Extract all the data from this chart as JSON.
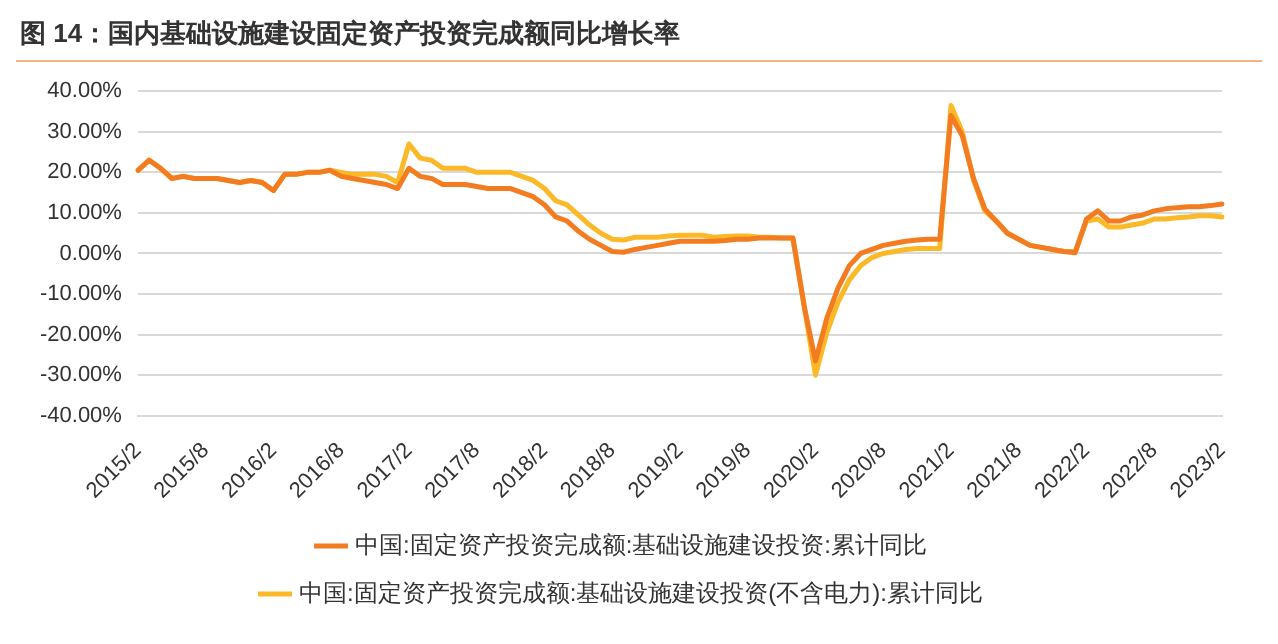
{
  "chart_data": {
    "type": "line",
    "title": "图 14：国内基础设施建设固定资产投资完成额同比增长率",
    "categories": [
      "2015/2",
      null,
      null,
      null,
      null,
      null,
      "2015/8",
      null,
      null,
      null,
      null,
      null,
      "2016/2",
      null,
      null,
      null,
      null,
      null,
      "2016/8",
      null,
      null,
      null,
      null,
      null,
      "2017/2",
      null,
      null,
      null,
      null,
      null,
      "2017/8",
      null,
      null,
      null,
      null,
      null,
      "2018/2",
      null,
      null,
      null,
      null,
      null,
      "2018/8",
      null,
      null,
      null,
      null,
      null,
      "2019/2",
      null,
      null,
      null,
      null,
      null,
      "2019/8",
      null,
      null,
      null,
      null,
      null,
      "2020/2",
      null,
      null,
      null,
      null,
      null,
      "2020/8",
      null,
      null,
      null,
      null,
      null,
      "2021/2",
      null,
      null,
      null,
      null,
      null,
      "2021/8",
      null,
      null,
      null,
      null,
      null,
      "2022/2",
      null,
      null,
      null,
      null,
      null,
      "2022/8",
      null,
      null,
      null,
      null,
      null,
      "2023/2"
    ],
    "series": [
      {
        "name": "中国:固定资产投资完成额:基础设施建设投资:累计同比",
        "color": "#f47c20",
        "values": [
          20.5,
          23,
          21,
          18.5,
          19,
          18.5,
          18.5,
          18.5,
          18,
          17.5,
          18,
          17.5,
          15.5,
          19.5,
          19.5,
          20,
          20,
          20.5,
          19,
          18.5,
          18,
          17.5,
          17,
          16,
          21,
          19,
          18.5,
          17,
          17,
          17,
          16.5,
          16,
          16,
          16,
          15,
          14,
          12,
          9,
          8,
          5.5,
          3.5,
          2,
          0.5,
          0.3,
          1,
          1.5,
          2,
          2.5,
          3,
          3,
          3,
          3,
          3.2,
          3.5,
          3.5,
          3.8,
          3.8,
          3.8,
          3.8,
          -13,
          -26.5,
          -16,
          -8.5,
          -3,
          0,
          1,
          2,
          2.5,
          3,
          3.3,
          3.5,
          3.5,
          34,
          29,
          18.5,
          11,
          8,
          5,
          3.5,
          2,
          1.5,
          1,
          0.5,
          0.2,
          8.5,
          10.5,
          8,
          8,
          9,
          9.5,
          10.5,
          11,
          11.3,
          11.5,
          11.5,
          11.8,
          12.2
        ]
      },
      {
        "name": "中国:固定资产投资完成额:基础设施建设投资(不含电力):累计同比",
        "color": "#fbb827",
        "values": [
          20.5,
          23,
          21,
          18.5,
          19,
          18.5,
          18.5,
          18.5,
          18,
          17.5,
          18,
          17.5,
          15.5,
          19.5,
          19.5,
          20,
          20,
          20.5,
          20,
          19.5,
          19.5,
          19.5,
          19,
          17.5,
          27,
          23.5,
          23,
          21,
          21,
          21,
          20,
          20,
          20,
          20,
          19,
          18,
          16,
          13,
          12,
          9.5,
          7,
          5,
          3.5,
          3.3,
          4,
          4,
          4,
          4.3,
          4.5,
          4.5,
          4.5,
          4,
          4.2,
          4.3,
          4.3,
          4,
          4,
          3.8,
          3.8,
          -13,
          -30,
          -19.5,
          -12,
          -6.5,
          -3,
          -1,
          0,
          0.5,
          1,
          1.2,
          1.2,
          1.2,
          36.5,
          30,
          18,
          10.5,
          8,
          5,
          3.5,
          2,
          1.5,
          1,
          0.5,
          0.5,
          8,
          8.5,
          6.5,
          6.5,
          7,
          7.5,
          8.5,
          8.5,
          8.8,
          9,
          9.3,
          9.3,
          9
        ]
      }
    ],
    "ylim": [
      -40,
      40
    ],
    "yticks": [
      {
        "value": -40,
        "label": "-40.00%"
      },
      {
        "value": -30,
        "label": "-30.00%"
      },
      {
        "value": -20,
        "label": "-20.00%"
      },
      {
        "value": -10,
        "label": "-10.00%"
      },
      {
        "value": 0,
        "label": "0.00%"
      },
      {
        "value": 10,
        "label": "10.00%"
      },
      {
        "value": 20,
        "label": "20.00%"
      },
      {
        "value": 30,
        "label": "30.00%"
      },
      {
        "value": 40,
        "label": "40.00%"
      }
    ],
    "grid": "y",
    "legend": "bottom",
    "marker": "none",
    "line_style": "solid"
  }
}
